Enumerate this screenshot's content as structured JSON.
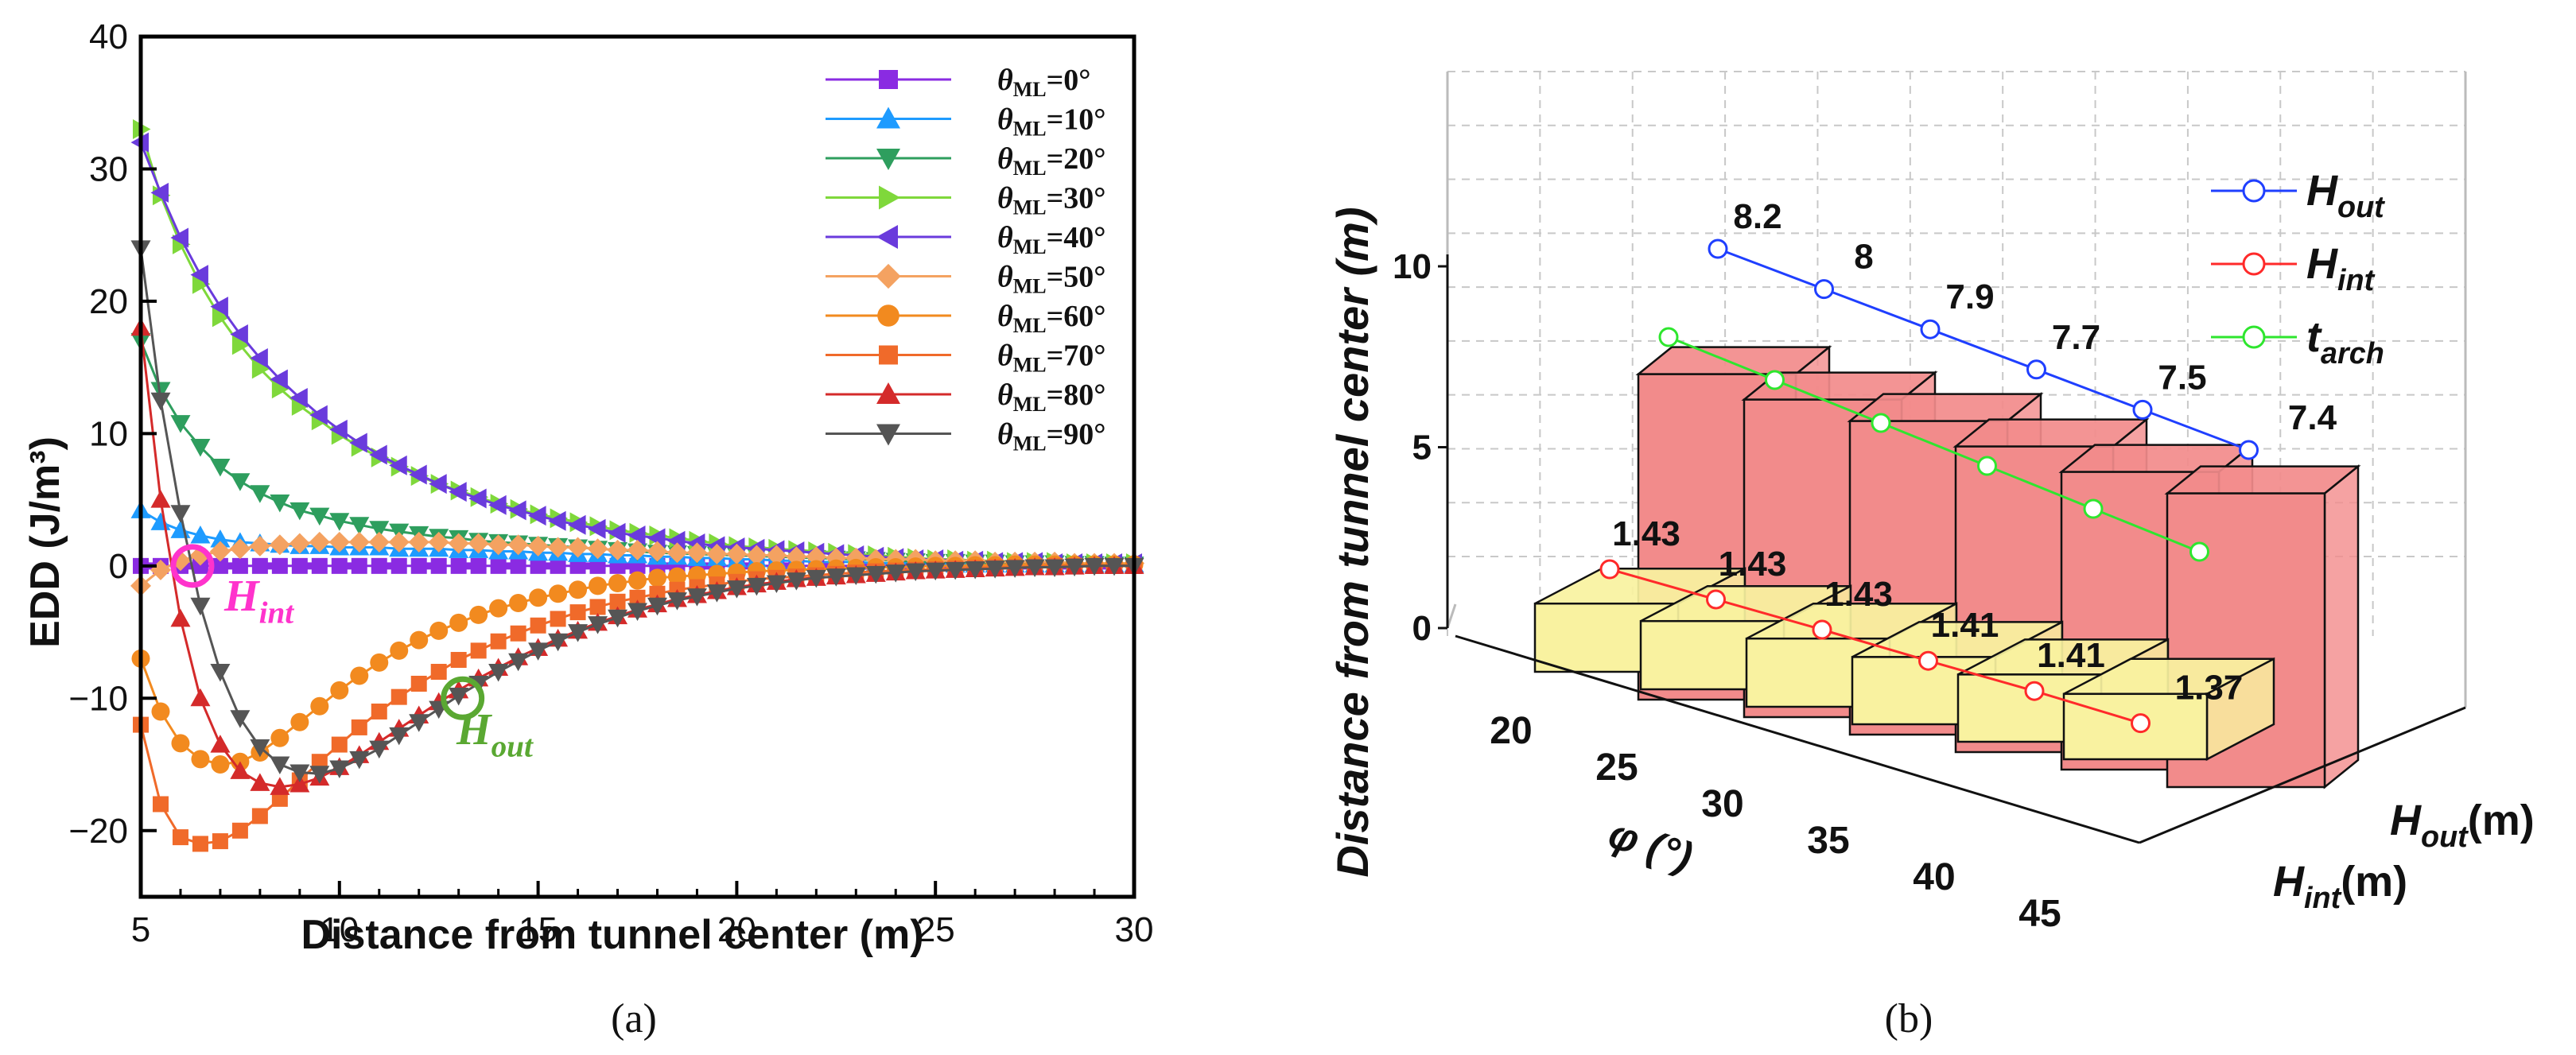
{
  "chart_data": [
    {
      "panel_label": "(a)",
      "type": "line",
      "xlabel": "Distance from tunnel center (m)",
      "ylabel": "EDD (J/m³)",
      "xlim": [
        5,
        30
      ],
      "ylim": [
        -25,
        40
      ],
      "xticks": [
        5,
        10,
        15,
        20,
        25,
        30
      ],
      "yticks": [
        40,
        30,
        20,
        10,
        0,
        -10,
        -20
      ],
      "ytick_labels": [
        "40",
        "30",
        "20",
        "10",
        "0",
        "−10",
        "−20"
      ],
      "grid": false,
      "legend_position": "top-right",
      "legend_symbol": "θ",
      "legend_subscript": "ML",
      "x": [
        5.0,
        5.5,
        6.0,
        6.5,
        7.0,
        7.5,
        8.0,
        8.5,
        9.0,
        9.5,
        10.0,
        10.5,
        11.0,
        11.5,
        12.0,
        12.5,
        13.0,
        13.5,
        14.0,
        14.5,
        15.0,
        15.5,
        16.0,
        16.5,
        17.0,
        17.5,
        18.0,
        18.5,
        19.0,
        19.5,
        20.0,
        20.5,
        21.0,
        21.5,
        22.0,
        22.5,
        23.0,
        23.5,
        24.0,
        24.5,
        25.0,
        25.5,
        26.0,
        26.5,
        27.0,
        27.5,
        28.0,
        28.5,
        29.0,
        29.5,
        30.0
      ],
      "series": [
        {
          "name": "=0°",
          "color": "#8a2be2",
          "marker": "square",
          "values": [
            0.0,
            0.0,
            0.0,
            0.0,
            0.0,
            0.0,
            0.0,
            0.0,
            0.0,
            0.0,
            0.0,
            0.0,
            0.0,
            0.0,
            0.0,
            0.0,
            0.0,
            0.0,
            0.0,
            0.0,
            0.0,
            0.0,
            0.0,
            0.0,
            0.0,
            0.0,
            0.0,
            0.0,
            0.0,
            0.0,
            0.0,
            0.0,
            0.0,
            0.0,
            0.0,
            0.0,
            0.0,
            0.0,
            0.0,
            0.0,
            0.0,
            0.0,
            0.0,
            0.0,
            0.0,
            0.0,
            0.0,
            0.0,
            0.0,
            0.0,
            0.0
          ]
        },
        {
          "name": "=10°",
          "color": "#1e9bff",
          "marker": "triangle-up",
          "values": [
            4.2,
            3.3,
            2.7,
            2.3,
            2.0,
            1.8,
            1.7,
            1.6,
            1.5,
            1.5,
            1.4,
            1.4,
            1.4,
            1.3,
            1.3,
            1.3,
            1.2,
            1.2,
            1.1,
            1.1,
            1.0,
            1.0,
            0.9,
            0.9,
            0.8,
            0.8,
            0.7,
            0.7,
            0.6,
            0.6,
            0.5,
            0.5,
            0.4,
            0.4,
            0.3,
            0.3,
            0.3,
            0.2,
            0.2,
            0.2,
            0.2,
            0.1,
            0.1,
            0.1,
            0.1,
            0.1,
            0.1,
            0.1,
            0.1,
            0.1,
            0.1
          ]
        },
        {
          "name": "=20°",
          "color": "#2e9e5e",
          "marker": "triangle-down",
          "values": [
            17.0,
            13.3,
            10.8,
            9.0,
            7.5,
            6.4,
            5.5,
            4.8,
            4.2,
            3.8,
            3.4,
            3.1,
            2.8,
            2.6,
            2.4,
            2.2,
            2.1,
            1.9,
            1.8,
            1.7,
            1.6,
            1.5,
            1.4,
            1.3,
            1.2,
            1.1,
            1.0,
            0.95,
            0.9,
            0.85,
            0.8,
            0.75,
            0.7,
            0.65,
            0.6,
            0.55,
            0.5,
            0.45,
            0.4,
            0.35,
            0.3,
            0.3,
            0.25,
            0.25,
            0.2,
            0.2,
            0.2,
            0.15,
            0.15,
            0.1,
            0.1
          ]
        },
        {
          "name": "=30°",
          "color": "#7fd83b",
          "marker": "triangle-right",
          "values": [
            33.0,
            28.0,
            24.3,
            21.3,
            18.8,
            16.7,
            14.9,
            13.4,
            12.1,
            11.0,
            9.9,
            9.0,
            8.2,
            7.5,
            6.8,
            6.2,
            5.7,
            5.2,
            4.7,
            4.3,
            3.9,
            3.6,
            3.3,
            3.0,
            2.7,
            2.5,
            2.3,
            2.1,
            1.9,
            1.7,
            1.5,
            1.4,
            1.3,
            1.2,
            1.1,
            1.0,
            0.9,
            0.8,
            0.7,
            0.6,
            0.5,
            0.5,
            0.4,
            0.4,
            0.3,
            0.3,
            0.3,
            0.2,
            0.2,
            0.2,
            0.2
          ]
        },
        {
          "name": "=40°",
          "color": "#6a3bdc",
          "marker": "triangle-left",
          "values": [
            32.0,
            28.2,
            24.8,
            22.0,
            19.6,
            17.5,
            15.7,
            14.1,
            12.7,
            11.4,
            10.3,
            9.3,
            8.4,
            7.6,
            6.9,
            6.2,
            5.6,
            5.1,
            4.6,
            4.2,
            3.8,
            3.4,
            3.1,
            2.8,
            2.5,
            2.3,
            2.1,
            1.9,
            1.7,
            1.5,
            1.4,
            1.3,
            1.2,
            1.1,
            1.0,
            0.9,
            0.8,
            0.7,
            0.6,
            0.5,
            0.5,
            0.4,
            0.4,
            0.3,
            0.3,
            0.3,
            0.2,
            0.2,
            0.2,
            0.2,
            0.2
          ]
        },
        {
          "name": "=50°",
          "color": "#f4a261",
          "marker": "diamond",
          "values": [
            -1.5,
            -0.3,
            0.4,
            0.8,
            1.1,
            1.3,
            1.5,
            1.6,
            1.7,
            1.8,
            1.8,
            1.8,
            1.8,
            1.8,
            1.8,
            1.8,
            1.7,
            1.7,
            1.6,
            1.6,
            1.5,
            1.4,
            1.4,
            1.3,
            1.2,
            1.2,
            1.1,
            1.0,
            1.0,
            0.9,
            0.9,
            0.8,
            0.8,
            0.7,
            0.7,
            0.6,
            0.6,
            0.5,
            0.5,
            0.5,
            0.4,
            0.4,
            0.4,
            0.3,
            0.3,
            0.3,
            0.3,
            0.2,
            0.2,
            0.2,
            0.2
          ]
        },
        {
          "name": "=60°",
          "color": "#f28a1f",
          "marker": "circle",
          "values": [
            -7.0,
            -11.0,
            -13.4,
            -14.6,
            -15.0,
            -14.8,
            -14.1,
            -13.0,
            -11.8,
            -10.6,
            -9.4,
            -8.3,
            -7.3,
            -6.4,
            -5.6,
            -4.9,
            -4.3,
            -3.7,
            -3.2,
            -2.8,
            -2.4,
            -2.1,
            -1.8,
            -1.5,
            -1.3,
            -1.1,
            -0.9,
            -0.8,
            -0.7,
            -0.6,
            -0.5,
            -0.4,
            -0.35,
            -0.3,
            -0.25,
            -0.2,
            -0.15,
            -0.1,
            -0.1,
            -0.05,
            0.0,
            0.0,
            0.05,
            0.05,
            0.1,
            0.1,
            0.1,
            0.1,
            0.1,
            0.1,
            0.1
          ]
        },
        {
          "name": "=70°",
          "color": "#f06a2a",
          "marker": "square",
          "values": [
            -12.0,
            -18.0,
            -20.5,
            -21.0,
            -20.8,
            -20.0,
            -18.9,
            -17.6,
            -16.2,
            -14.8,
            -13.5,
            -12.2,
            -11.0,
            -9.9,
            -8.9,
            -8.0,
            -7.1,
            -6.4,
            -5.7,
            -5.1,
            -4.5,
            -4.0,
            -3.5,
            -3.1,
            -2.7,
            -2.4,
            -2.1,
            -1.8,
            -1.6,
            -1.4,
            -1.2,
            -1.0,
            -0.9,
            -0.8,
            -0.7,
            -0.6,
            -0.5,
            -0.4,
            -0.35,
            -0.3,
            -0.25,
            -0.2,
            -0.15,
            -0.1,
            -0.1,
            -0.05,
            0.0,
            0.0,
            0.0,
            0.0,
            0.0
          ]
        },
        {
          "name": "=80°",
          "color": "#d42a2a",
          "marker": "triangle-up",
          "values": [
            18.0,
            5.0,
            -4.0,
            -10.0,
            -13.5,
            -15.5,
            -16.4,
            -16.7,
            -16.5,
            -16.0,
            -15.2,
            -14.3,
            -13.3,
            -12.3,
            -11.3,
            -10.3,
            -9.4,
            -8.5,
            -7.7,
            -6.9,
            -6.2,
            -5.5,
            -4.9,
            -4.3,
            -3.8,
            -3.3,
            -2.9,
            -2.5,
            -2.2,
            -1.9,
            -1.6,
            -1.4,
            -1.2,
            -1.0,
            -0.9,
            -0.8,
            -0.7,
            -0.6,
            -0.5,
            -0.4,
            -0.35,
            -0.3,
            -0.25,
            -0.2,
            -0.15,
            -0.1,
            -0.1,
            -0.05,
            0.0,
            0.0,
            0.0
          ]
        },
        {
          "name": "=90°",
          "color": "#555555",
          "marker": "triangle-down",
          "values": [
            24.0,
            12.5,
            4.0,
            -3.0,
            -8.0,
            -11.5,
            -13.7,
            -15.0,
            -15.6,
            -15.7,
            -15.3,
            -14.6,
            -13.8,
            -12.8,
            -11.8,
            -10.8,
            -9.8,
            -8.9,
            -8.0,
            -7.2,
            -6.4,
            -5.7,
            -5.0,
            -4.4,
            -3.9,
            -3.4,
            -3.0,
            -2.6,
            -2.3,
            -2.0,
            -1.7,
            -1.5,
            -1.3,
            -1.1,
            -0.9,
            -0.8,
            -0.7,
            -0.6,
            -0.5,
            -0.4,
            -0.35,
            -0.3,
            -0.25,
            -0.2,
            -0.15,
            -0.1,
            -0.1,
            -0.05,
            0.0,
            0.0,
            0.0
          ]
        }
      ],
      "reference_line": {
        "y": 0,
        "color": "#8a2be2",
        "style": "dashed"
      },
      "annotations": [
        {
          "symbol": "H",
          "subscript": "int",
          "color": "#ff33cc",
          "marker_x": 6.3,
          "marker_y": 0.0
        },
        {
          "symbol": "H",
          "subscript": "out",
          "color": "#5aa832",
          "marker_x": 13.1,
          "marker_y": -10.0
        }
      ]
    },
    {
      "panel_label": "(b)",
      "type": "bar",
      "projection": "3d",
      "ylabel": "Distance from tunnel center (m)",
      "xlabel": "φ (°)",
      "zaxis_label_symbol": "H",
      "zaxis_label_unit": "(m)",
      "zaxis_categories": [
        "out",
        "int"
      ],
      "categories": [
        "20",
        "25",
        "30",
        "35",
        "40",
        "45"
      ],
      "yticks": [
        "0",
        "5",
        "10"
      ],
      "ylim": [
        0,
        11
      ],
      "grid": true,
      "legend_position": "top-right",
      "series": [
        {
          "name": "out",
          "values": [
            8.2,
            8.0,
            7.9,
            7.7,
            7.5,
            7.4
          ],
          "bar_color": "#f28b8b",
          "line_color": "#1f3fff"
        },
        {
          "name": "int",
          "values": [
            1.43,
            1.43,
            1.43,
            1.41,
            1.41,
            1.37
          ],
          "bar_color": "#f9f2a0",
          "line_color": "#ff2a2a"
        },
        {
          "name": "arch",
          "values": [
            8.2,
            7.6,
            7.0,
            6.4,
            5.8,
            5.2
          ],
          "line_color": "#2ee62e"
        }
      ],
      "value_labels": {
        "out": [
          "8.2",
          "8",
          "7.9",
          "7.7",
          "7.5",
          "7.4"
        ],
        "int": [
          "1.43",
          "1.43",
          "1.43",
          "1.41",
          "1.41",
          "1.37"
        ]
      },
      "legend_entries": [
        {
          "symbol": "H",
          "subscript": "out",
          "color": "#1f3fff"
        },
        {
          "symbol": "H",
          "subscript": "int",
          "color": "#ff2a2a"
        },
        {
          "symbol": "t",
          "subscript": "arch",
          "color": "#2ee62e"
        }
      ]
    }
  ]
}
